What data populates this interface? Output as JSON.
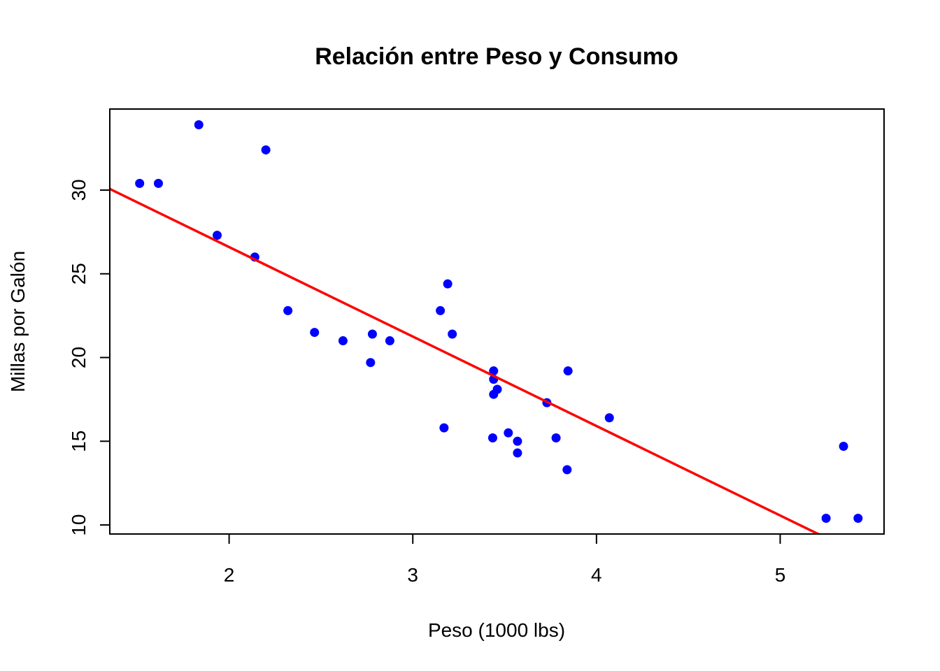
{
  "chart_data": {
    "type": "scatter",
    "title": "Relación entre Peso y Consumo",
    "xlabel": "Peso (1000 lbs)",
    "ylabel": "Millas por Galón",
    "xlim": [
      1.3505,
      5.5655
    ],
    "ylim": [
      9.46,
      34.84
    ],
    "xticks": [
      2,
      3,
      4,
      5
    ],
    "yticks": [
      10,
      15,
      20,
      25,
      30
    ],
    "grid": false,
    "colors": {
      "points": "#0000FF",
      "regression_line": "#FF0000",
      "axes": "#000000"
    },
    "points": [
      {
        "x": 2.62,
        "y": 21.0
      },
      {
        "x": 2.875,
        "y": 21.0
      },
      {
        "x": 2.32,
        "y": 22.8
      },
      {
        "x": 3.215,
        "y": 21.4
      },
      {
        "x": 3.44,
        "y": 18.7
      },
      {
        "x": 3.46,
        "y": 18.1
      },
      {
        "x": 3.57,
        "y": 14.3
      },
      {
        "x": 3.19,
        "y": 24.4
      },
      {
        "x": 3.15,
        "y": 22.8
      },
      {
        "x": 3.44,
        "y": 19.2
      },
      {
        "x": 3.44,
        "y": 17.8
      },
      {
        "x": 4.07,
        "y": 16.4
      },
      {
        "x": 3.73,
        "y": 17.3
      },
      {
        "x": 3.78,
        "y": 15.2
      },
      {
        "x": 5.25,
        "y": 10.4
      },
      {
        "x": 5.424,
        "y": 10.4
      },
      {
        "x": 5.345,
        "y": 14.7
      },
      {
        "x": 2.2,
        "y": 32.4
      },
      {
        "x": 1.615,
        "y": 30.4
      },
      {
        "x": 1.835,
        "y": 33.9
      },
      {
        "x": 2.465,
        "y": 21.5
      },
      {
        "x": 3.52,
        "y": 15.5
      },
      {
        "x": 3.435,
        "y": 15.2
      },
      {
        "x": 3.84,
        "y": 13.3
      },
      {
        "x": 3.845,
        "y": 19.2
      },
      {
        "x": 1.935,
        "y": 27.3
      },
      {
        "x": 2.14,
        "y": 26.0
      },
      {
        "x": 1.513,
        "y": 30.4
      },
      {
        "x": 3.17,
        "y": 15.8
      },
      {
        "x": 2.77,
        "y": 19.7
      },
      {
        "x": 3.57,
        "y": 15.0
      },
      {
        "x": 2.78,
        "y": 21.4
      }
    ],
    "regression": {
      "intercept": 37.285,
      "slope": -5.344
    }
  }
}
